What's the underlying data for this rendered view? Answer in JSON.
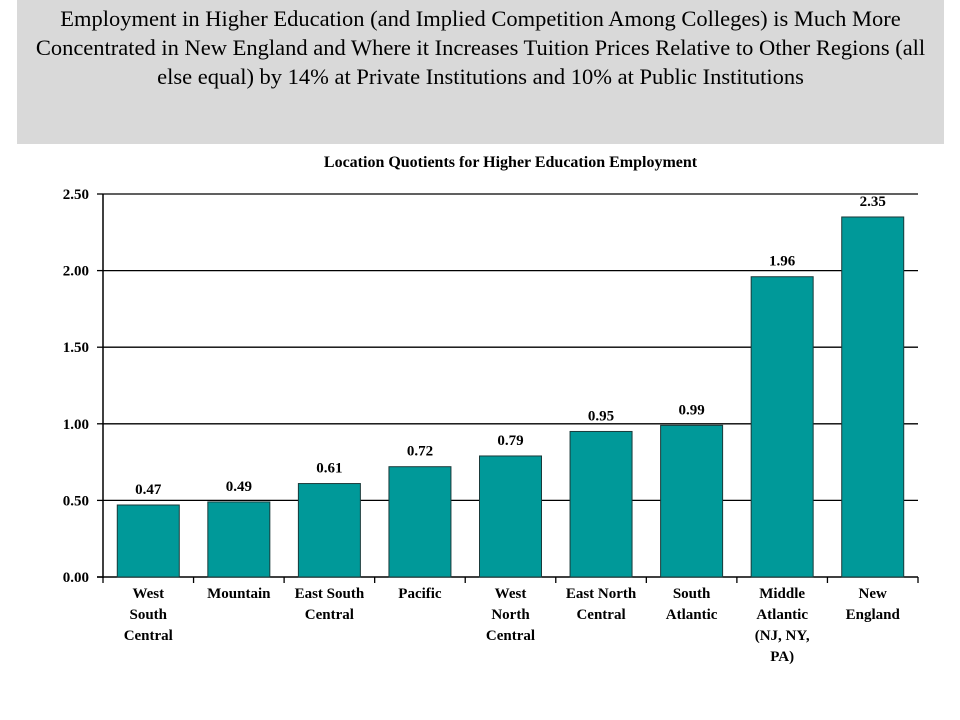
{
  "heading": "Employment in Higher Education (and Implied Competition Among Colleges) is Much More Concentrated in New England and Where it Increases Tuition Prices Relative to Other Regions (all else equal)  by 14% at Private Institutions and 10% at Public Institutions",
  "colors": {
    "bar": "#009999",
    "bar_border": "#1a3a3a",
    "title_bg": "#d9d9d9"
  },
  "chart_data": {
    "type": "bar",
    "title": "Location Quotients for Higher Education Employment",
    "xlabel": "",
    "ylabel": "",
    "ylim": [
      0,
      2.5
    ],
    "yticks": [
      "0.00",
      "0.50",
      "1.00",
      "1.50",
      "2.00",
      "2.50"
    ],
    "grid": true,
    "categories": [
      [
        "West",
        "South",
        "Central"
      ],
      [
        "Mountain"
      ],
      [
        "East South",
        "Central"
      ],
      [
        "Pacific"
      ],
      [
        "West",
        "North",
        "Central"
      ],
      [
        "East North",
        "Central"
      ],
      [
        "South",
        "Atlantic"
      ],
      [
        "Middle",
        "Atlantic",
        "(NJ, NY,",
        "PA)"
      ],
      [
        "New",
        "England"
      ]
    ],
    "values": [
      0.47,
      0.49,
      0.61,
      0.72,
      0.79,
      0.95,
      0.99,
      1.96,
      2.35
    ],
    "labels": [
      "0.47",
      "0.49",
      "0.61",
      "0.72",
      "0.79",
      "0.95",
      "0.99",
      "1.96",
      "2.35"
    ]
  }
}
